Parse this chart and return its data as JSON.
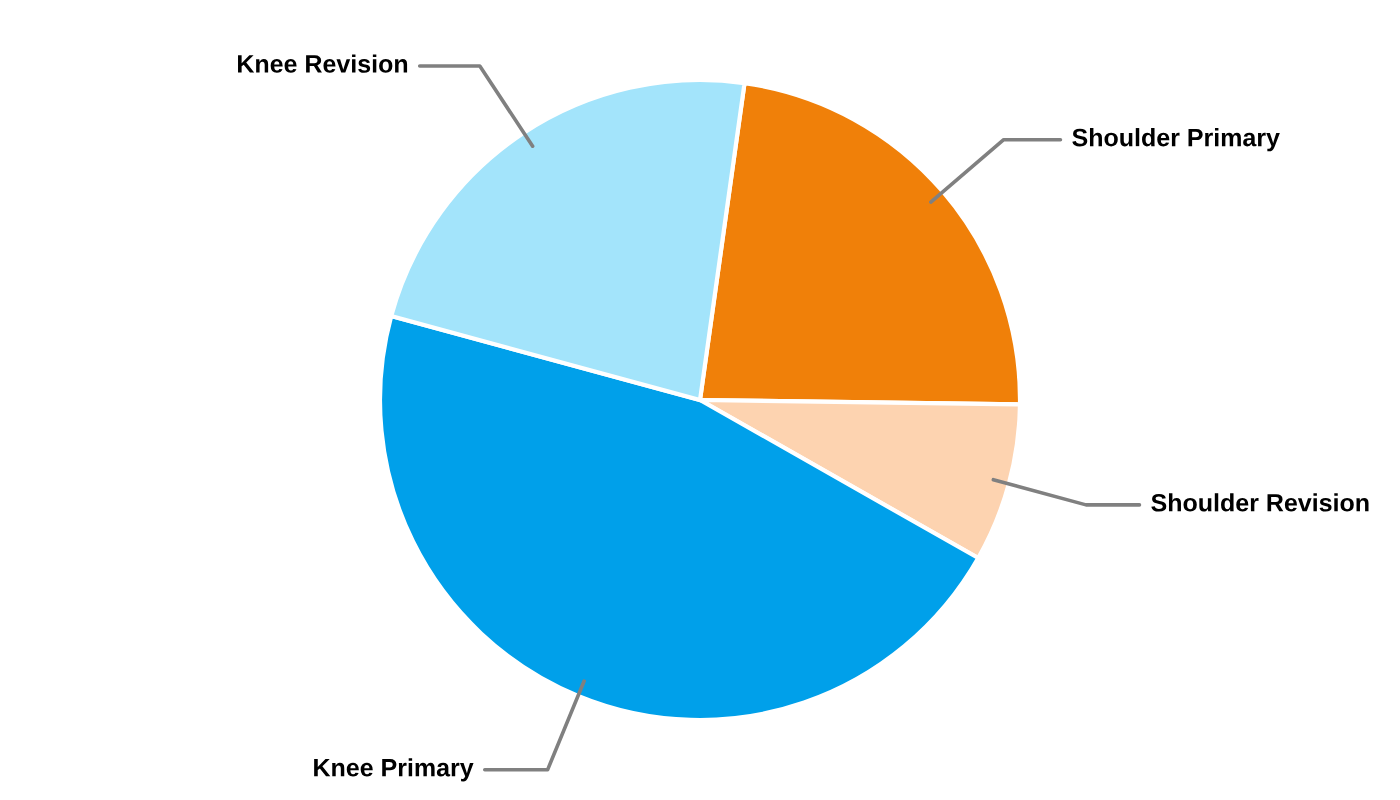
{
  "chart_data": {
    "type": "pie",
    "categories": [
      "Shoulder Primary",
      "Shoulder Revision",
      "Knee Primary",
      "Knee Revision"
    ],
    "values": [
      23,
      8,
      46,
      23
    ],
    "colors": [
      "#f08009",
      "#fdd3b0",
      "#00a0ea",
      "#a3e4fb"
    ],
    "legend": false
  }
}
